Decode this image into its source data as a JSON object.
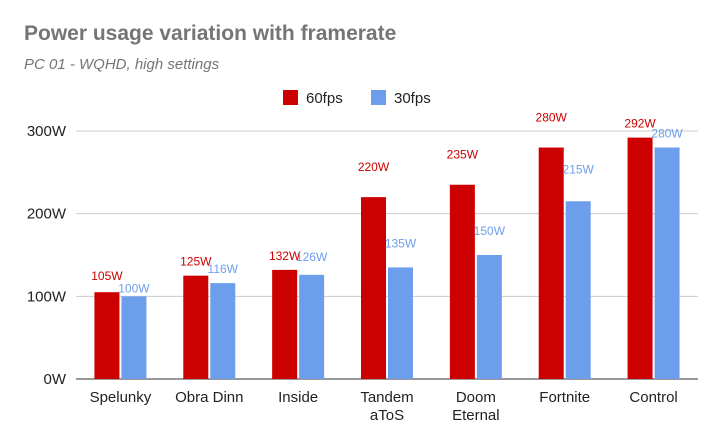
{
  "chart_data": {
    "type": "bar",
    "title": "Power usage variation with framerate",
    "subtitle": "PC 01 - WQHD, high settings",
    "xlabel": "",
    "ylabel": "",
    "ylim": [
      0,
      300
    ],
    "yticks": [
      0,
      100,
      200,
      300
    ],
    "ytick_labels": [
      "0W",
      "100W",
      "200W",
      "300W"
    ],
    "grid": true,
    "legend_position": "top",
    "categories": [
      [
        "Spelunky"
      ],
      [
        "Obra Dinn"
      ],
      [
        "Inside"
      ],
      [
        "Tandem",
        "aToS"
      ],
      [
        "Doom",
        "Eternal"
      ],
      [
        "Fortnite"
      ],
      [
        "Control"
      ]
    ],
    "series": [
      {
        "name": "60fps",
        "color": "#cc0000",
        "values": [
          105,
          125,
          132,
          220,
          235,
          280,
          292
        ],
        "labels": [
          "105W",
          "125W",
          "132W",
          "220W",
          "235W",
          "280W",
          "292W"
        ]
      },
      {
        "name": "30fps",
        "color": "#6d9eeb",
        "values": [
          100,
          116,
          126,
          135,
          150,
          215,
          280
        ],
        "labels": [
          "100W",
          "116W",
          "126W",
          "135W",
          "150W",
          "215W",
          "280W"
        ]
      }
    ]
  }
}
